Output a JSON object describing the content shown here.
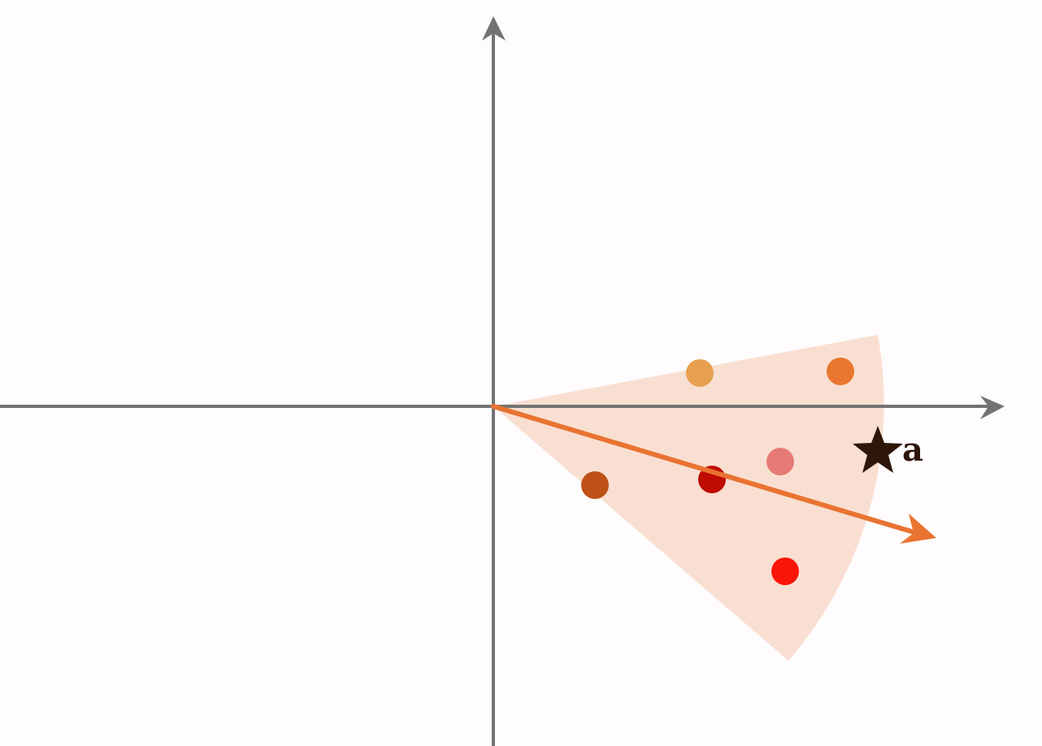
{
  "diagram": {
    "colors": {
      "background": "#fefcfd",
      "axes": "#737373",
      "sector_fill": "#f9dfd2",
      "vector": "#e97331",
      "star": "#2e1608"
    },
    "points": [
      {
        "color": "#e6a050"
      },
      {
        "color": "#ea772f"
      },
      {
        "color": "#e57b74"
      },
      {
        "color": "#bf0a00"
      },
      {
        "color": "#be5116"
      },
      {
        "color": "#fa1506"
      }
    ],
    "star_point": {
      "label": "a",
      "icon": "star-icon"
    }
  }
}
